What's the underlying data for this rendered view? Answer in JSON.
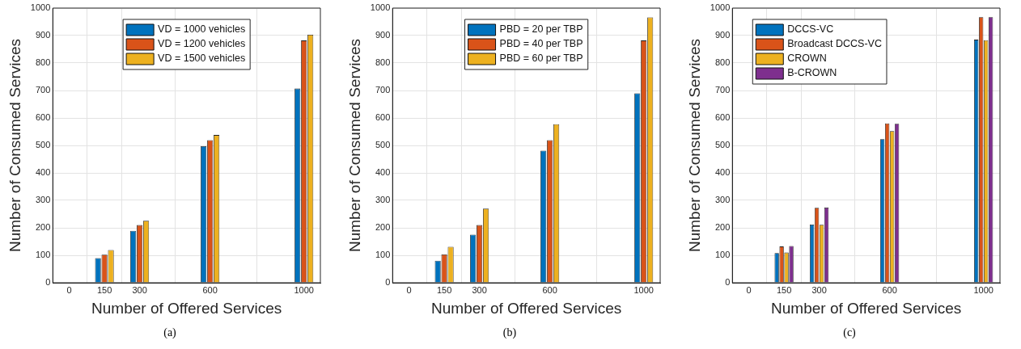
{
  "chart_data": [
    {
      "type": "bar",
      "x": [
        0,
        150,
        300,
        600,
        1000
      ],
      "xlabel": "Number of Offered Services",
      "ylabel": "Number of Consumed Services",
      "xlim": [
        -70,
        1070
      ],
      "xticks": [
        0,
        150,
        300,
        600,
        1000
      ],
      "ylim": [
        0,
        1000
      ],
      "yticks": [
        0,
        100,
        200,
        300,
        400,
        500,
        600,
        700,
        800,
        900,
        1000
      ],
      "grid": true,
      "legend": "top",
      "annotations": [
        "(a)"
      ],
      "series": [
        {
          "name": "VD = 1000 vehicles",
          "color": "#0072bd",
          "values": [
            0,
            90,
            189,
            497,
            707
          ]
        },
        {
          "name": "VD = 1200 vehicles",
          "color": "#d95319",
          "values": [
            0,
            102,
            210,
            519,
            882
          ]
        },
        {
          "name": "VD = 1500 vehicles",
          "color": "#edb120",
          "values": [
            0,
            119,
            226,
            538,
            903
          ]
        }
      ]
    },
    {
      "type": "bar",
      "x": [
        0,
        150,
        300,
        600,
        1000
      ],
      "xlabel": "Number of Offered Services",
      "ylabel": "Number of Consumed Services",
      "xlim": [
        -70,
        1070
      ],
      "xticks": [
        0,
        150,
        300,
        600,
        1000
      ],
      "ylim": [
        0,
        1000
      ],
      "yticks": [
        0,
        100,
        200,
        300,
        400,
        500,
        600,
        700,
        800,
        900,
        1000
      ],
      "grid": true,
      "legend": "top",
      "annotations": [
        "(b)"
      ],
      "series": [
        {
          "name": "PBD = 20 per TBP",
          "color": "#0072bd",
          "values": [
            0,
            80,
            175,
            481,
            690
          ]
        },
        {
          "name": "PBD = 40 per TBP",
          "color": "#d95319",
          "values": [
            0,
            103,
            210,
            519,
            882
          ]
        },
        {
          "name": "PBD = 60 per TBP",
          "color": "#edb120",
          "values": [
            0,
            131,
            270,
            577,
            966
          ]
        }
      ]
    },
    {
      "type": "bar",
      "x": [
        0,
        150,
        300,
        600,
        1000
      ],
      "xlabel": "Number of Offered Services",
      "ylabel": "Number of Consumed Services",
      "xlim": [
        -70,
        1070
      ],
      "xticks": [
        0,
        150,
        300,
        600,
        1000
      ],
      "ylim": [
        0,
        1000
      ],
      "yticks": [
        0,
        100,
        200,
        300,
        400,
        500,
        600,
        700,
        800,
        900,
        1000
      ],
      "grid": true,
      "legend": "top left",
      "annotations": [
        "(c)"
      ],
      "series": [
        {
          "name": "DCCS-VC",
          "color": "#0072bd",
          "values": [
            0,
            108,
            212,
            523,
            885
          ]
        },
        {
          "name": "Broadcast DCCS-VC",
          "color": "#d95319",
          "values": [
            0,
            132,
            273,
            580,
            967
          ]
        },
        {
          "name": "CROWN",
          "color": "#edb120",
          "values": [
            0,
            110,
            211,
            552,
            883
          ]
        },
        {
          "name": "B-CROWN",
          "color": "#7e2f8e",
          "values": [
            0,
            134,
            274,
            579,
            967
          ]
        }
      ]
    }
  ]
}
